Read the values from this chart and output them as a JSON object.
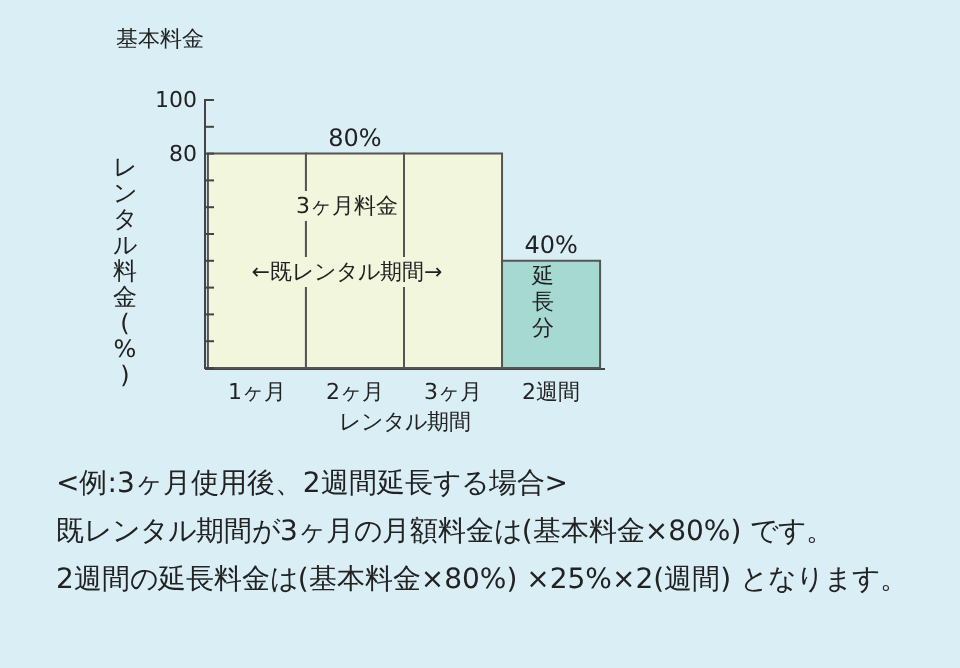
{
  "chart_data": {
    "type": "bar",
    "xlabel": "レンタル期間",
    "ylabel": "レンタル料金(%)",
    "categories": [
      "1ヶ月",
      "2ヶ月",
      "3ヶ月",
      "2週間"
    ],
    "values": [
      80,
      80,
      80,
      40
    ],
    "colors": [
      "#f2f6dc",
      "#f2f6dc",
      "#f2f6dc",
      "#a6d9d2"
    ],
    "value_labels": [
      null,
      "80%",
      null,
      "40%"
    ],
    "ylim": [
      0,
      100
    ],
    "yticks": [
      {
        "value": 0,
        "label": null
      },
      {
        "value": 10,
        "label": null
      },
      {
        "value": 20,
        "label": null
      },
      {
        "value": 30,
        "label": null
      },
      {
        "value": 40,
        "label": null
      },
      {
        "value": 50,
        "label": null
      },
      {
        "value": 60,
        "label": null
      },
      {
        "value": 70,
        "label": null
      },
      80,
      {
        "value": 90,
        "label": null
      },
      100
    ],
    "grid": false,
    "annotations": [
      "基本料金",
      "3ヶ月料金",
      "←既レンタル期間→",
      "延長分",
      "<例:3ヶ月使用後、2週間延長する場合>",
      "既レンタル期間が3ヶ月の月額料金は(基本料金×80%) です。",
      "2週間の延長料金は(基本料金×80%) ×25%×2(週間) となります。"
    ]
  }
}
